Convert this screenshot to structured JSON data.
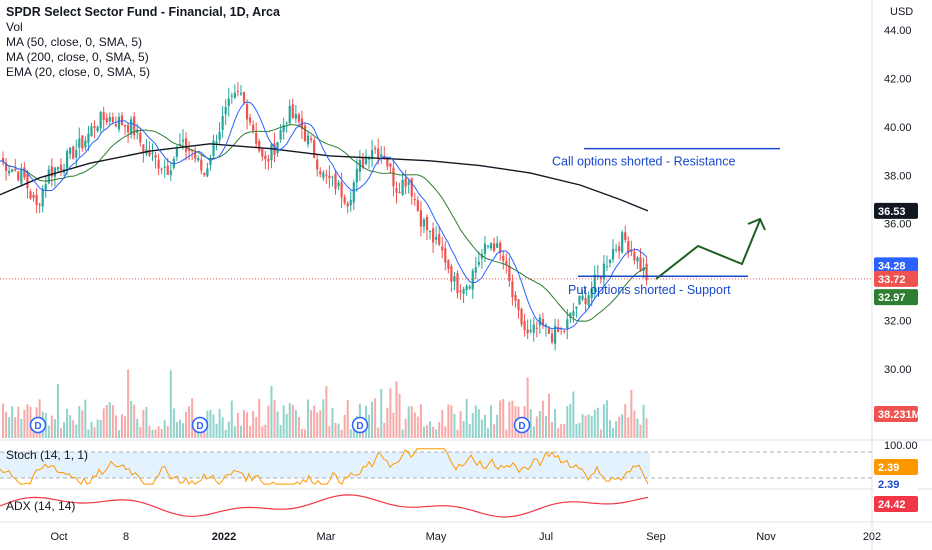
{
  "legend": {
    "title": "SPDR Select Sector Fund - Financial, 1D, Arca",
    "vol": "Vol",
    "ma50": "MA (50, close, 0, SMA, 5)",
    "ma200": "MA (200, close, 0, SMA, 5)",
    "ema20": "EMA (20, close, 0, SMA, 5)"
  },
  "stoch_label": "Stoch (14, 1, 1)",
  "adx_label": "ADX (14, 14)",
  "colors": {
    "up": "#26a69a",
    "down": "#ef5350",
    "ma50": "#2e7d32",
    "ma200": "#131722",
    "ema20": "#2962ff",
    "annotation": "#1848cc",
    "arrow": "#1b5e20",
    "stoch": "#ff9800",
    "adx": "#f23645",
    "vol_up": "#8fd3cb",
    "vol_down": "#f7a9a7"
  },
  "chart_data": {
    "type": "candlestick",
    "currency": "USD",
    "price_axis": {
      "range": [
        28.6,
        44.6
      ],
      "ticks": [
        "44.00",
        "42.00",
        "40.00",
        "38.00",
        "36.00",
        "32.00",
        "30.00"
      ]
    },
    "x_ticks": [
      "Oct",
      "8",
      "2022",
      "Mar",
      "May",
      "Jul",
      "Sep",
      "Nov",
      "202"
    ],
    "price_tags": [
      {
        "label": "36.53",
        "value": 36.53,
        "series": "MA (200)",
        "bg": "#131722",
        "fg": "#ffffff"
      },
      {
        "label": "34.28",
        "value": 34.28,
        "series": "EMA (20)",
        "bg": "#2962ff",
        "fg": "#ffffff"
      },
      {
        "label": "33.72",
        "value": 33.72,
        "series": "Last price",
        "bg": "#ef5350",
        "fg": "#ffffff"
      },
      {
        "label": "32.97",
        "value": 32.97,
        "series": "MA (50)",
        "bg": "#2e7d32",
        "fg": "#ffffff"
      },
      {
        "label": "38.231M",
        "series": "Volume",
        "bg": "#ef5350",
        "fg": "#ffffff"
      }
    ],
    "close_path": [
      [
        0,
        38.6
      ],
      [
        12,
        38.3
      ],
      [
        24,
        37.9
      ],
      [
        36,
        36.6
      ],
      [
        48,
        38.1
      ],
      [
        60,
        38.4
      ],
      [
        72,
        38.9
      ],
      [
        84,
        39.4
      ],
      [
        96,
        40.2
      ],
      [
        108,
        40.4
      ],
      [
        120,
        40.2
      ],
      [
        132,
        40.0
      ],
      [
        144,
        39.1
      ],
      [
        156,
        38.6
      ],
      [
        168,
        38.3
      ],
      [
        180,
        39.2
      ],
      [
        192,
        39.0
      ],
      [
        204,
        38.0
      ],
      [
        216,
        39.6
      ],
      [
        228,
        40.8
      ],
      [
        240,
        41.4
      ],
      [
        252,
        40.1
      ],
      [
        264,
        38.4
      ],
      [
        276,
        39.3
      ],
      [
        288,
        40.6
      ],
      [
        300,
        40.1
      ],
      [
        312,
        39.1
      ],
      [
        324,
        37.9
      ],
      [
        336,
        37.6
      ],
      [
        348,
        37.0
      ],
      [
        360,
        38.4
      ],
      [
        372,
        39.2
      ],
      [
        384,
        38.9
      ],
      [
        396,
        37.5
      ],
      [
        408,
        37.9
      ],
      [
        420,
        36.3
      ],
      [
        432,
        35.4
      ],
      [
        444,
        34.7
      ],
      [
        456,
        33.4
      ],
      [
        468,
        33.6
      ],
      [
        480,
        34.6
      ],
      [
        492,
        35.3
      ],
      [
        504,
        34.4
      ],
      [
        516,
        32.4
      ],
      [
        528,
        31.3
      ],
      [
        540,
        31.8
      ],
      [
        552,
        31.4
      ],
      [
        564,
        31.6
      ],
      [
        576,
        32.6
      ],
      [
        588,
        33.1
      ],
      [
        600,
        33.9
      ],
      [
        612,
        34.9
      ],
      [
        624,
        35.4
      ],
      [
        636,
        34.6
      ],
      [
        648,
        33.7
      ]
    ],
    "volume_tag": "38.231M",
    "stoch": {
      "levels": [
        "100.00"
      ],
      "value_tags": [
        "2.39",
        "2.39"
      ],
      "band": [
        20,
        80
      ]
    },
    "adx": {
      "value_tag": "24.42"
    },
    "dividend_markers": [
      "D",
      "D",
      "D",
      "D"
    ],
    "annotations": {
      "resistance_label": "Call options shorted - Resistance",
      "resistance_level": 39.1,
      "support_label": "Put options shorted - Support",
      "support_level": 33.75
    }
  }
}
